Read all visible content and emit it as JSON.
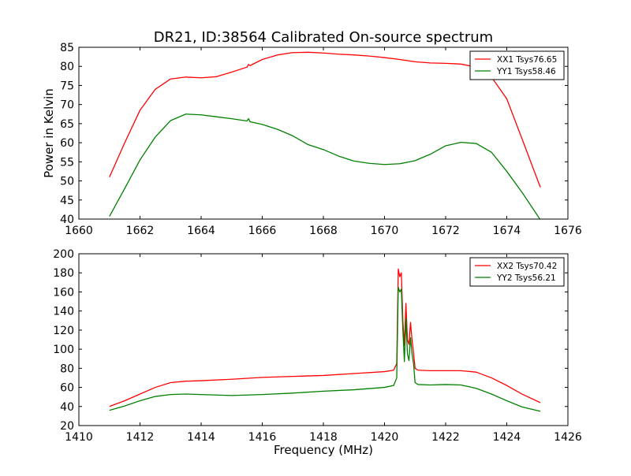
{
  "figure": {
    "title": "DR21, ID:38564 Calibrated On-source spectrum"
  },
  "chart_data": [
    {
      "type": "line",
      "title": "DR21, ID:38564 Calibrated On-source spectrum",
      "xlabel": "",
      "ylabel": "Power in Kelvin",
      "xlim": [
        1660,
        1676
      ],
      "ylim": [
        40,
        85
      ],
      "xticks": [
        1660,
        1662,
        1664,
        1666,
        1668,
        1670,
        1672,
        1674,
        1676
      ],
      "yticks": [
        40,
        45,
        50,
        55,
        60,
        65,
        70,
        75,
        80,
        85
      ],
      "grid": false,
      "legend_position": "top-right",
      "series": [
        {
          "name": "XX1 Tsys76.65",
          "color": "#ff0000",
          "x": [
            1661.0,
            1661.5,
            1662.0,
            1662.5,
            1663.0,
            1663.5,
            1664.0,
            1664.5,
            1665.0,
            1665.5,
            1665.55,
            1665.6,
            1666.0,
            1666.5,
            1667.0,
            1667.5,
            1668.0,
            1668.5,
            1669.0,
            1669.5,
            1670.0,
            1670.5,
            1671.0,
            1671.5,
            1672.0,
            1672.5,
            1673.0,
            1673.5,
            1674.0,
            1674.5,
            1675.1
          ],
          "values": [
            51,
            60,
            68.5,
            74,
            76.7,
            77.2,
            77,
            77.3,
            78.5,
            79.8,
            80.5,
            80.2,
            81.8,
            83.0,
            83.6,
            83.7,
            83.5,
            83.2,
            83.0,
            82.7,
            82.3,
            81.8,
            81.2,
            80.9,
            80.8,
            80.6,
            79.8,
            77.2,
            71.5,
            61.0,
            48.3
          ]
        },
        {
          "name": "YY1 Tsys58.46",
          "color": "#008000",
          "x": [
            1661.0,
            1661.5,
            1662.0,
            1662.5,
            1663.0,
            1663.5,
            1664.0,
            1664.5,
            1665.0,
            1665.5,
            1665.55,
            1665.6,
            1666.0,
            1666.5,
            1667.0,
            1667.5,
            1668.0,
            1668.5,
            1669.0,
            1669.5,
            1670.0,
            1670.5,
            1671.0,
            1671.5,
            1672.0,
            1672.5,
            1673.0,
            1673.5,
            1674.0,
            1674.5,
            1675.1
          ],
          "values": [
            40.7,
            48,
            55.5,
            61.5,
            65.8,
            67.5,
            67.3,
            66.8,
            66.3,
            65.7,
            66.3,
            65.5,
            64.8,
            63.5,
            61.8,
            59.5,
            58.2,
            56.5,
            55.2,
            54.6,
            54.3,
            54.5,
            55.3,
            57.0,
            59.2,
            60.1,
            59.8,
            57.5,
            52.5,
            47.0,
            39.8
          ]
        }
      ]
    },
    {
      "type": "line",
      "title": "",
      "xlabel": "Frequency (MHz)",
      "ylabel": "",
      "xlim": [
        1410,
        1426
      ],
      "ylim": [
        20,
        200
      ],
      "xticks": [
        1410,
        1412,
        1414,
        1416,
        1418,
        1420,
        1422,
        1424,
        1426
      ],
      "yticks": [
        20,
        40,
        60,
        80,
        100,
        120,
        140,
        160,
        180,
        200
      ],
      "grid": false,
      "legend_position": "top-right",
      "series": [
        {
          "name": "XX2 Tsys70.42",
          "color": "#ff0000",
          "x": [
            1411.0,
            1411.5,
            1412.0,
            1412.5,
            1413.0,
            1413.5,
            1414.0,
            1415.0,
            1416.0,
            1417.0,
            1418.0,
            1419.0,
            1420.0,
            1420.3,
            1420.4,
            1420.45,
            1420.5,
            1420.55,
            1420.6,
            1420.65,
            1420.7,
            1420.75,
            1420.8,
            1420.85,
            1420.9,
            1420.95,
            1421.0,
            1421.1,
            1421.5,
            1422.0,
            1422.5,
            1423.0,
            1423.5,
            1424.0,
            1424.5,
            1425.1
          ],
          "values": [
            40,
            46,
            53,
            60,
            65,
            66.5,
            67,
            68.5,
            70.5,
            71.5,
            72.5,
            74.5,
            76.5,
            78,
            85,
            184,
            176,
            180,
            130,
            104,
            148,
            110,
            105,
            128,
            110,
            96,
            80,
            78,
            77.5,
            77.5,
            77.5,
            76,
            70,
            62,
            53,
            44
          ]
        },
        {
          "name": "YY2 Tsys56.21",
          "color": "#008000",
          "x": [
            1411.0,
            1411.5,
            1412.0,
            1412.5,
            1413.0,
            1413.5,
            1414.0,
            1415.0,
            1416.0,
            1417.0,
            1418.0,
            1419.0,
            1420.0,
            1420.3,
            1420.4,
            1420.45,
            1420.5,
            1420.55,
            1420.6,
            1420.65,
            1420.7,
            1420.75,
            1420.8,
            1420.85,
            1420.9,
            1420.95,
            1421.0,
            1421.1,
            1421.5,
            1422.0,
            1422.5,
            1423.0,
            1423.5,
            1424.0,
            1424.5,
            1425.1
          ],
          "values": [
            36,
            40.5,
            46,
            50.5,
            52.5,
            53,
            52.5,
            51.5,
            52.5,
            54,
            56,
            57.5,
            60,
            62,
            70,
            165,
            160,
            163,
            120,
            87,
            132,
            95,
            88,
            112,
            95,
            85,
            65,
            63,
            62.5,
            63,
            62.5,
            59,
            53,
            46,
            39.5,
            35
          ]
        }
      ]
    }
  ]
}
